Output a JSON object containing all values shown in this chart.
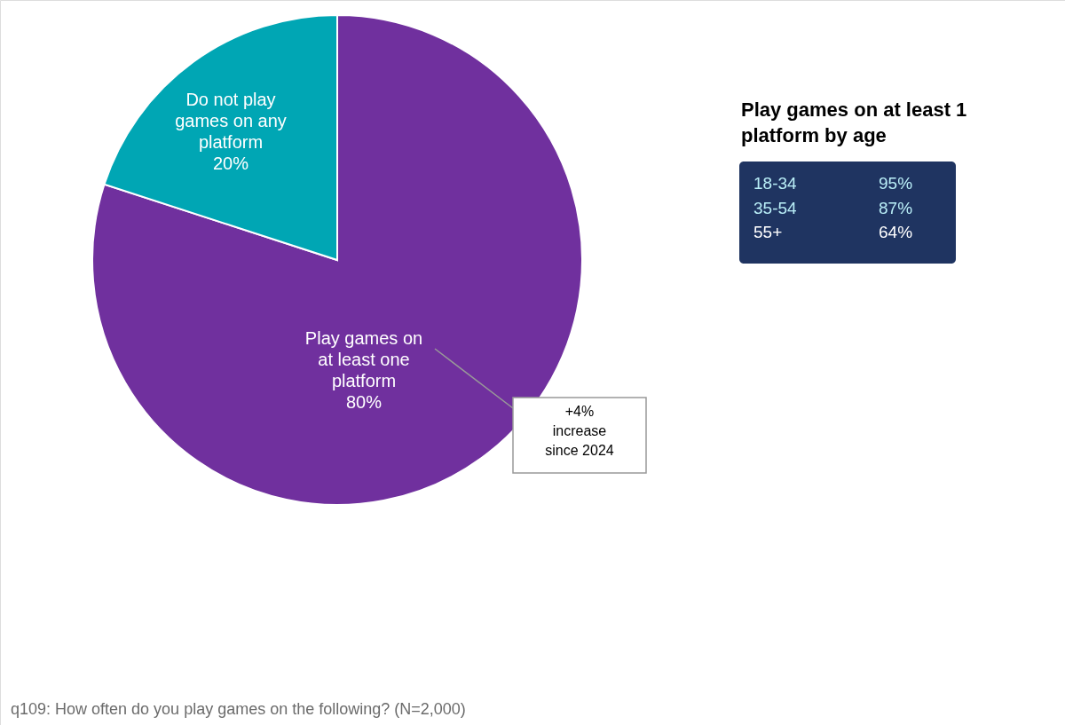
{
  "chart_data": [
    {
      "type": "pie",
      "categories": [
        "Play games on at least one platform",
        "Do not play games on any platform"
      ],
      "values": [
        80,
        20
      ],
      "value_labels": [
        "80%",
        "20%"
      ],
      "colors": [
        "#70309e",
        "#00a6b4"
      ],
      "annotations": [
        "+4% increase since 2024",
        "q109: How often do you play games on the following? (N=2,000)"
      ]
    },
    {
      "type": "other",
      "title": "Play games on at least 1 platform by age",
      "categories": [
        "18-34",
        "35-54",
        "55+"
      ],
      "values": [
        95,
        87,
        64
      ],
      "value_labels": [
        "95%",
        "87%",
        "64%"
      ]
    }
  ]
}
